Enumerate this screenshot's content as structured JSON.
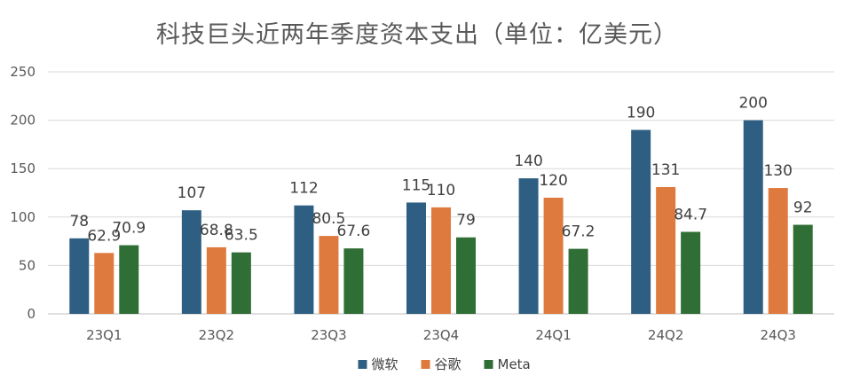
{
  "chart_data": {
    "type": "bar",
    "title": "科技巨头近两年季度资本支出（单位：亿美元）",
    "xlabel": "",
    "ylabel": "",
    "categories": [
      "23Q1",
      "23Q2",
      "23Q3",
      "23Q4",
      "24Q1",
      "24Q2",
      "24Q3"
    ],
    "series": [
      {
        "name": "微软",
        "color": "#2e5f82",
        "values": [
          78,
          107,
          112,
          115,
          140,
          190,
          200
        ],
        "labels": [
          "78",
          "107",
          "112",
          "115",
          "140",
          "190",
          "200"
        ]
      },
      {
        "name": "谷歌",
        "color": "#df7a3e",
        "values": [
          62.9,
          68.8,
          80.5,
          110,
          120,
          131,
          130
        ],
        "labels": [
          "62.9",
          "68.8",
          "80.5",
          "110",
          "120",
          "131",
          "130"
        ]
      },
      {
        "name": "Meta",
        "color": "#2f6e35",
        "values": [
          70.9,
          63.5,
          67.6,
          79,
          67.2,
          84.7,
          92
        ],
        "labels": [
          "70.9",
          "63.5",
          "67.6",
          "79",
          "67.2",
          "84.7",
          "92"
        ]
      }
    ],
    "ylim": [
      0,
      250
    ],
    "yticks": [
      0,
      50,
      100,
      150,
      200,
      250
    ],
    "ytick_labels": [
      "0",
      "50",
      "100",
      "150",
      "200",
      "250"
    ],
    "grid": true,
    "legend": "bottom-center"
  }
}
